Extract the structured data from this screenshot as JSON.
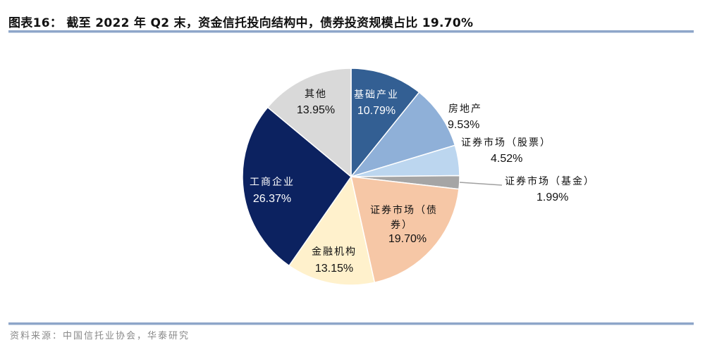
{
  "title": "图表16： 截至 2022 年 Q2 末，资金信托投向结构中，债券投资规模占比 19.70%",
  "source": "资料来源：中国信托业协会，华泰研究",
  "chart_data": {
    "type": "pie",
    "title": "截至 2022 年 Q2 末，资金信托投向结构中，债券投资规模占比 19.70%",
    "start_angle": "12 o'clock",
    "direction": "clockwise",
    "unit": "%",
    "categories": [
      "基础产业",
      "房地产",
      "证券市场（股票）",
      "证券市场（基金）",
      "证券市场（债券）",
      "金融机构",
      "工商企业",
      "其他"
    ],
    "values": [
      10.79,
      9.53,
      4.52,
      1.99,
      19.7,
      13.15,
      26.37,
      13.95
    ],
    "colors": [
      "#335f93",
      "#8fb0d8",
      "#bcd6ef",
      "#a5a5a5",
      "#f6c7a6",
      "#fff1cc",
      "#0c2260",
      "#d9d9d9"
    ],
    "labels": [
      {
        "name": "基础产业",
        "value": "10.79%"
      },
      {
        "name": "房地产",
        "value": "9.53%"
      },
      {
        "name": "证券市场（股票）",
        "value": "4.52%"
      },
      {
        "name": "证券市场（基金）",
        "value": "1.99%"
      },
      {
        "name_line1": "证券市场（债",
        "name_line2": "券）",
        "value": "19.70%"
      },
      {
        "name": "金融机构",
        "value": "13.15%"
      },
      {
        "name": "工商企业",
        "value": "26.37%"
      },
      {
        "name": "其他",
        "value": "13.95%"
      }
    ],
    "legend": "none (data labels on/near slices)"
  }
}
